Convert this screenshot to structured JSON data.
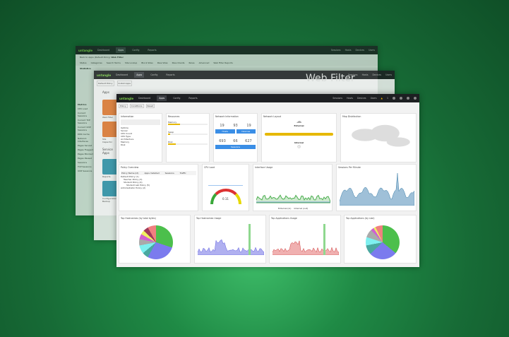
{
  "nav": {
    "logo": "untangle",
    "items": [
      "Dashboard",
      "Apps",
      "Config",
      "Reports"
    ],
    "right": [
      "Sessions",
      "Hosts",
      "Devices",
      "Users"
    ],
    "alerts": "1"
  },
  "webfilter": {
    "back": "Back to Apps (Default Policy)",
    "title": "Web Filter",
    "tabs": [
      "Status",
      "Categories",
      "Search Terms",
      "Site Lookup",
      "Block Sites",
      "Pass Sites",
      "Pass Clients",
      "Rules",
      "Advanced",
      "Web Filter Reports"
    ],
    "section": "Statistics"
  },
  "apps": {
    "policy": "Default Policy",
    "install": "Install Apps",
    "heading": "Apps",
    "service": "Service Apps",
    "items": [
      "Web Filter",
      "SSL Inspector",
      "Reports",
      "Configuration Backup"
    ],
    "metrics_title": "Metrics",
    "metrics": [
      "CPU Load",
      "Current Sessions",
      "Current TCP Sessions",
      "Current UDP Sessions",
      "DNS Cache",
      "Network Interfaces",
      "Pages Served",
      "Pages Flagged",
      "Pages Blocked",
      "Pages Passed",
      "Sessions",
      "TCP Sessions",
      "UDP Sessions"
    ]
  },
  "dash": {
    "toolbar": [
      "Policy",
      "Conditions",
      "Reset"
    ],
    "info": {
      "title": "Information",
      "rows": [
        "Uptime",
        "Server",
        "CPU Count",
        "CPU Type",
        "Architecture",
        "Memory",
        "Disk"
      ]
    },
    "resources": {
      "title": "Resources",
      "items": [
        "Memory",
        "Swap",
        "Disk"
      ],
      "fill": [
        0.3,
        0.05,
        0.2
      ]
    },
    "netinfo": {
      "title": "Network Information",
      "top": [
        "19",
        "93",
        "19"
      ],
      "bottom": [
        "693",
        "66",
        "627"
      ],
      "buttons": [
        "Hosts",
        "Devices",
        "Sessions"
      ]
    },
    "layout": {
      "title": "Network Layout",
      "external": "External",
      "internal": "Internal"
    },
    "map": {
      "title": "Map Distribution"
    },
    "policy": {
      "title": "Policy Overview",
      "cols": [
        "Policy Name (id)",
        "Apps Installed",
        "Sessions",
        "Traffic"
      ],
      "rows": [
        "Default Policy (1)",
        "Teacher Policy (3)",
        "Student Policy (4)",
        "Student Lab Policy (5)",
        "Administrator Policy (2)"
      ]
    },
    "cpu": {
      "title": "CPU Load",
      "value": "0.11"
    },
    "iface": {
      "title": "Interface Usage",
      "legend": [
        "External (in)",
        "Internal (out)"
      ]
    },
    "spm": {
      "title": "Sessions Per Minute"
    },
    "hostpie": {
      "title": "Top Hostnames (by total bytes)"
    },
    "hostusage": {
      "title": "Top Hostnames Usage"
    },
    "appusage": {
      "title": "Top Applications Usage"
    },
    "apppie": {
      "title": "Top Applications (by size)"
    }
  },
  "colors": {
    "accent": "#3a8ee6",
    "header": "#1d1f22",
    "brand": "#7fd14a",
    "warn": "#e6b800"
  }
}
